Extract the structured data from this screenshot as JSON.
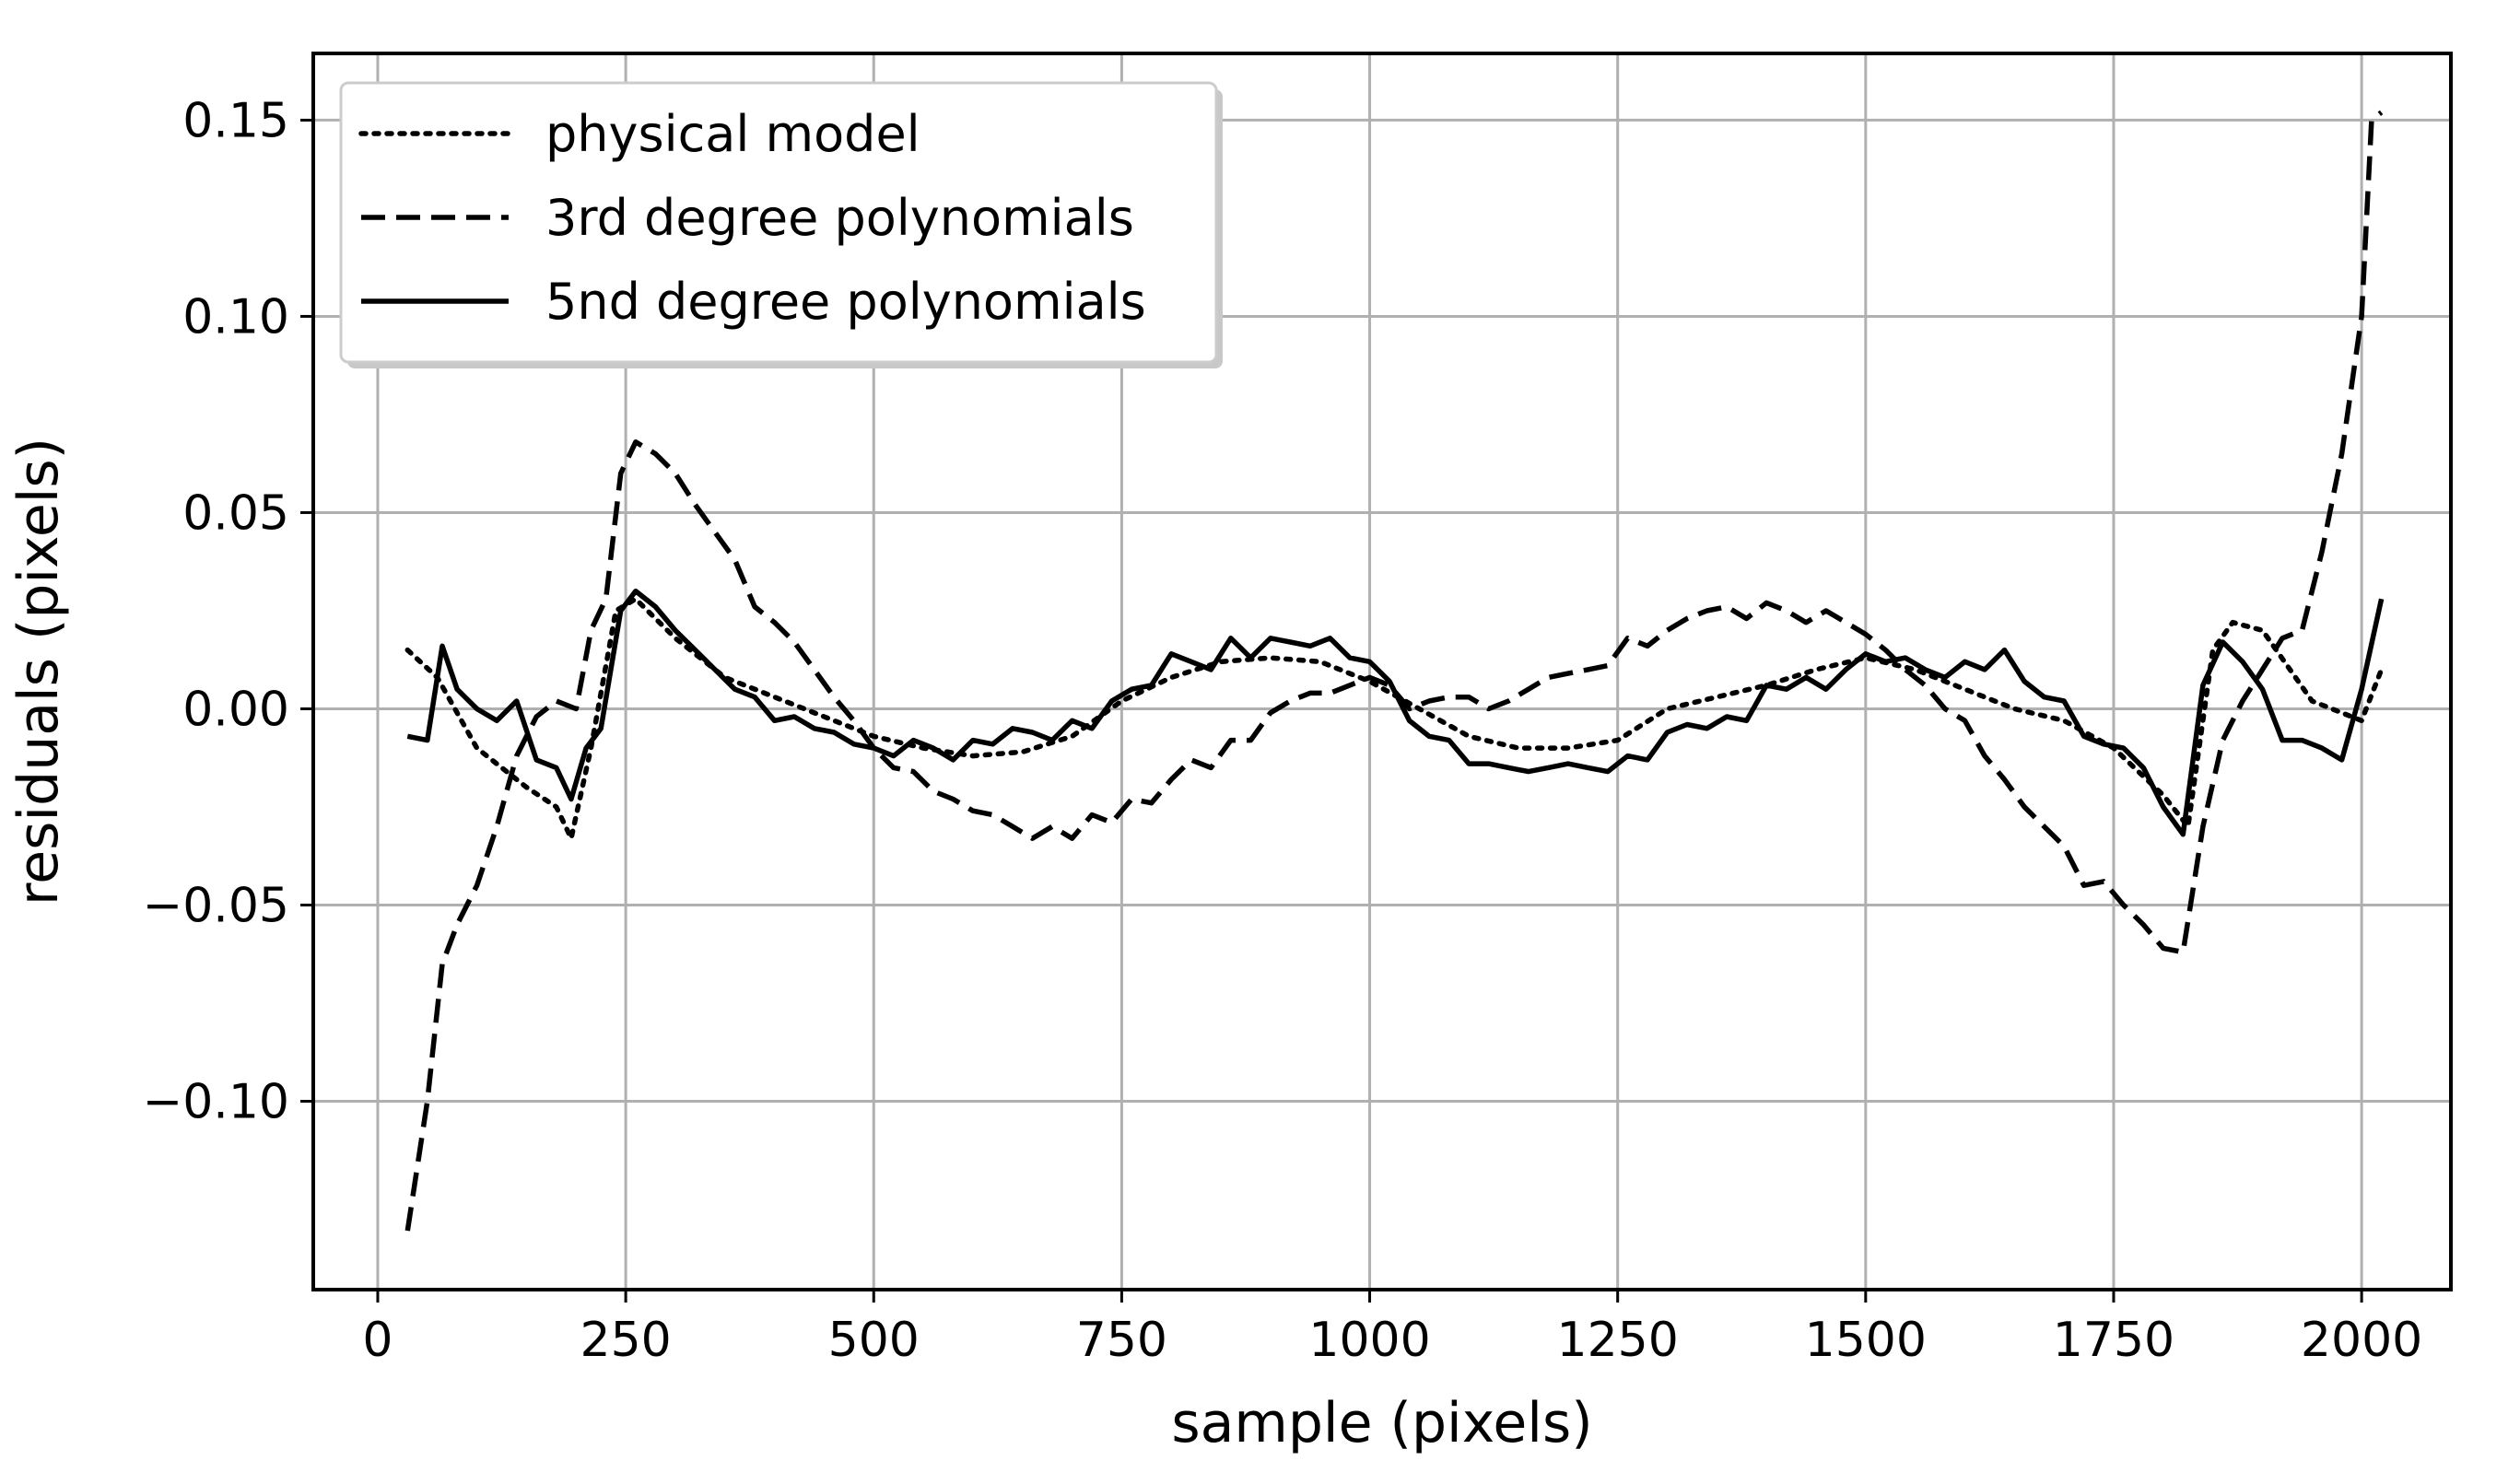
{
  "chart_data": {
    "type": "line",
    "title": "",
    "xlabel": "sample (pixels)",
    "ylabel": "residuals (pixels)",
    "xlim": [
      -65,
      2090
    ],
    "ylim": [
      -0.148,
      0.167
    ],
    "xticks": [
      0,
      250,
      500,
      750,
      1000,
      1250,
      1500,
      1750,
      2000
    ],
    "xtick_labels": [
      "0",
      "250",
      "500",
      "750",
      "1000",
      "1250",
      "1500",
      "1750",
      "2000"
    ],
    "yticks": [
      -0.1,
      -0.05,
      0.0,
      0.05,
      0.1,
      0.15
    ],
    "ytick_labels": [
      "−0.10",
      "−0.05",
      "0.00",
      "0.05",
      "0.10",
      "0.15"
    ],
    "grid": true,
    "legend_position": "top-left",
    "series": [
      {
        "name": "physical model",
        "style": "dotted",
        "color": "#000000",
        "x": [
          30,
          60,
          100,
          150,
          180,
          195,
          215,
          240,
          260,
          300,
          350,
          400,
          450,
          500,
          550,
          600,
          650,
          700,
          750,
          800,
          850,
          900,
          950,
          1000,
          1050,
          1100,
          1150,
          1200,
          1250,
          1300,
          1350,
          1400,
          1450,
          1500,
          1550,
          1600,
          1650,
          1700,
          1750,
          1800,
          1825,
          1850,
          1870,
          1900,
          1950,
          2000,
          2020
        ],
        "y": [
          0.015,
          0.008,
          -0.01,
          -0.02,
          -0.025,
          -0.033,
          -0.01,
          0.025,
          0.028,
          0.018,
          0.008,
          0.003,
          -0.002,
          -0.007,
          -0.01,
          -0.012,
          -0.011,
          -0.007,
          0.002,
          0.008,
          0.012,
          0.013,
          0.012,
          0.007,
          0.0,
          -0.007,
          -0.01,
          -0.01,
          -0.008,
          0.0,
          0.003,
          0.006,
          0.01,
          0.013,
          0.01,
          0.005,
          0.0,
          -0.003,
          -0.01,
          -0.022,
          -0.03,
          0.015,
          0.022,
          0.02,
          0.002,
          -0.003,
          0.01
        ]
      },
      {
        "name": "3rd degree polynomials",
        "style": "dashed",
        "color": "#000000",
        "x": [
          30,
          50,
          65,
          80,
          100,
          120,
          140,
          160,
          180,
          200,
          215,
          230,
          245,
          260,
          280,
          300,
          320,
          340,
          360,
          380,
          400,
          420,
          440,
          460,
          480,
          500,
          520,
          540,
          560,
          580,
          600,
          620,
          640,
          660,
          680,
          700,
          720,
          740,
          760,
          780,
          800,
          820,
          840,
          860,
          880,
          900,
          920,
          940,
          960,
          980,
          1000,
          1020,
          1040,
          1060,
          1080,
          1100,
          1120,
          1140,
          1160,
          1180,
          1200,
          1220,
          1240,
          1260,
          1280,
          1300,
          1320,
          1340,
          1360,
          1380,
          1400,
          1420,
          1440,
          1460,
          1480,
          1500,
          1520,
          1540,
          1560,
          1580,
          1600,
          1620,
          1640,
          1660,
          1680,
          1700,
          1720,
          1740,
          1760,
          1780,
          1800,
          1820,
          1840,
          1860,
          1880,
          1900,
          1920,
          1940,
          1960,
          1980,
          2000,
          2010,
          2020
        ],
        "y": [
          -0.133,
          -0.1,
          -0.065,
          -0.055,
          -0.045,
          -0.03,
          -0.012,
          -0.002,
          0.002,
          0.0,
          0.02,
          0.028,
          0.06,
          0.068,
          0.065,
          0.06,
          0.052,
          0.045,
          0.038,
          0.026,
          0.022,
          0.017,
          0.01,
          0.003,
          -0.003,
          -0.01,
          -0.015,
          -0.016,
          -0.021,
          -0.023,
          -0.026,
          -0.027,
          -0.03,
          -0.033,
          -0.03,
          -0.033,
          -0.027,
          -0.029,
          -0.023,
          -0.024,
          -0.018,
          -0.013,
          -0.015,
          -0.008,
          -0.008,
          -0.001,
          0.002,
          0.004,
          0.004,
          0.006,
          0.008,
          0.006,
          0.0,
          0.002,
          0.003,
          0.003,
          0.0,
          0.002,
          0.005,
          0.008,
          0.009,
          0.01,
          0.011,
          0.018,
          0.016,
          0.02,
          0.023,
          0.025,
          0.026,
          0.023,
          0.027,
          0.025,
          0.022,
          0.025,
          0.022,
          0.019,
          0.015,
          0.01,
          0.006,
          0.0,
          -0.003,
          -0.012,
          -0.018,
          -0.025,
          -0.03,
          -0.035,
          -0.045,
          -0.044,
          -0.05,
          -0.055,
          -0.061,
          -0.062,
          -0.03,
          -0.008,
          0.002,
          0.01,
          0.018,
          0.02,
          0.04,
          0.065,
          0.1,
          0.15,
          0.152
        ]
      },
      {
        "name": "5nd degree polynomials",
        "style": "solid",
        "color": "#000000",
        "x": [
          30,
          50,
          65,
          80,
          100,
          120,
          140,
          160,
          180,
          195,
          210,
          225,
          245,
          260,
          280,
          300,
          320,
          340,
          360,
          380,
          400,
          420,
          440,
          460,
          480,
          500,
          520,
          540,
          560,
          580,
          600,
          620,
          640,
          660,
          680,
          700,
          720,
          740,
          760,
          780,
          800,
          820,
          840,
          860,
          880,
          900,
          920,
          940,
          960,
          980,
          1000,
          1020,
          1040,
          1060,
          1080,
          1100,
          1120,
          1140,
          1160,
          1180,
          1200,
          1220,
          1240,
          1260,
          1280,
          1300,
          1320,
          1340,
          1360,
          1380,
          1400,
          1420,
          1440,
          1460,
          1480,
          1500,
          1520,
          1540,
          1560,
          1580,
          1600,
          1620,
          1640,
          1660,
          1680,
          1700,
          1720,
          1740,
          1760,
          1780,
          1800,
          1820,
          1840,
          1860,
          1880,
          1900,
          1920,
          1940,
          1960,
          1980,
          2000,
          2020
        ],
        "y": [
          -0.007,
          -0.008,
          0.016,
          0.005,
          0.0,
          -0.003,
          0.002,
          -0.013,
          -0.015,
          -0.023,
          -0.01,
          -0.005,
          0.025,
          0.03,
          0.026,
          0.02,
          0.015,
          0.01,
          0.005,
          0.003,
          -0.003,
          -0.002,
          -0.005,
          -0.006,
          -0.009,
          -0.01,
          -0.012,
          -0.008,
          -0.01,
          -0.013,
          -0.008,
          -0.009,
          -0.005,
          -0.006,
          -0.008,
          -0.003,
          -0.005,
          0.002,
          0.005,
          0.006,
          0.014,
          0.012,
          0.01,
          0.018,
          0.013,
          0.018,
          0.017,
          0.016,
          0.018,
          0.013,
          0.012,
          0.007,
          -0.003,
          -0.007,
          -0.008,
          -0.014,
          -0.014,
          -0.015,
          -0.016,
          -0.015,
          -0.014,
          -0.015,
          -0.016,
          -0.012,
          -0.013,
          -0.006,
          -0.004,
          -0.005,
          -0.002,
          -0.003,
          0.006,
          0.005,
          0.008,
          0.005,
          0.01,
          0.014,
          0.012,
          0.013,
          0.01,
          0.008,
          0.012,
          0.01,
          0.015,
          0.007,
          0.003,
          0.002,
          -0.007,
          -0.009,
          -0.01,
          -0.015,
          -0.025,
          -0.032,
          0.006,
          0.017,
          0.012,
          0.005,
          -0.008,
          -0.008,
          -0.01,
          -0.013,
          0.005,
          0.028
        ]
      }
    ]
  }
}
